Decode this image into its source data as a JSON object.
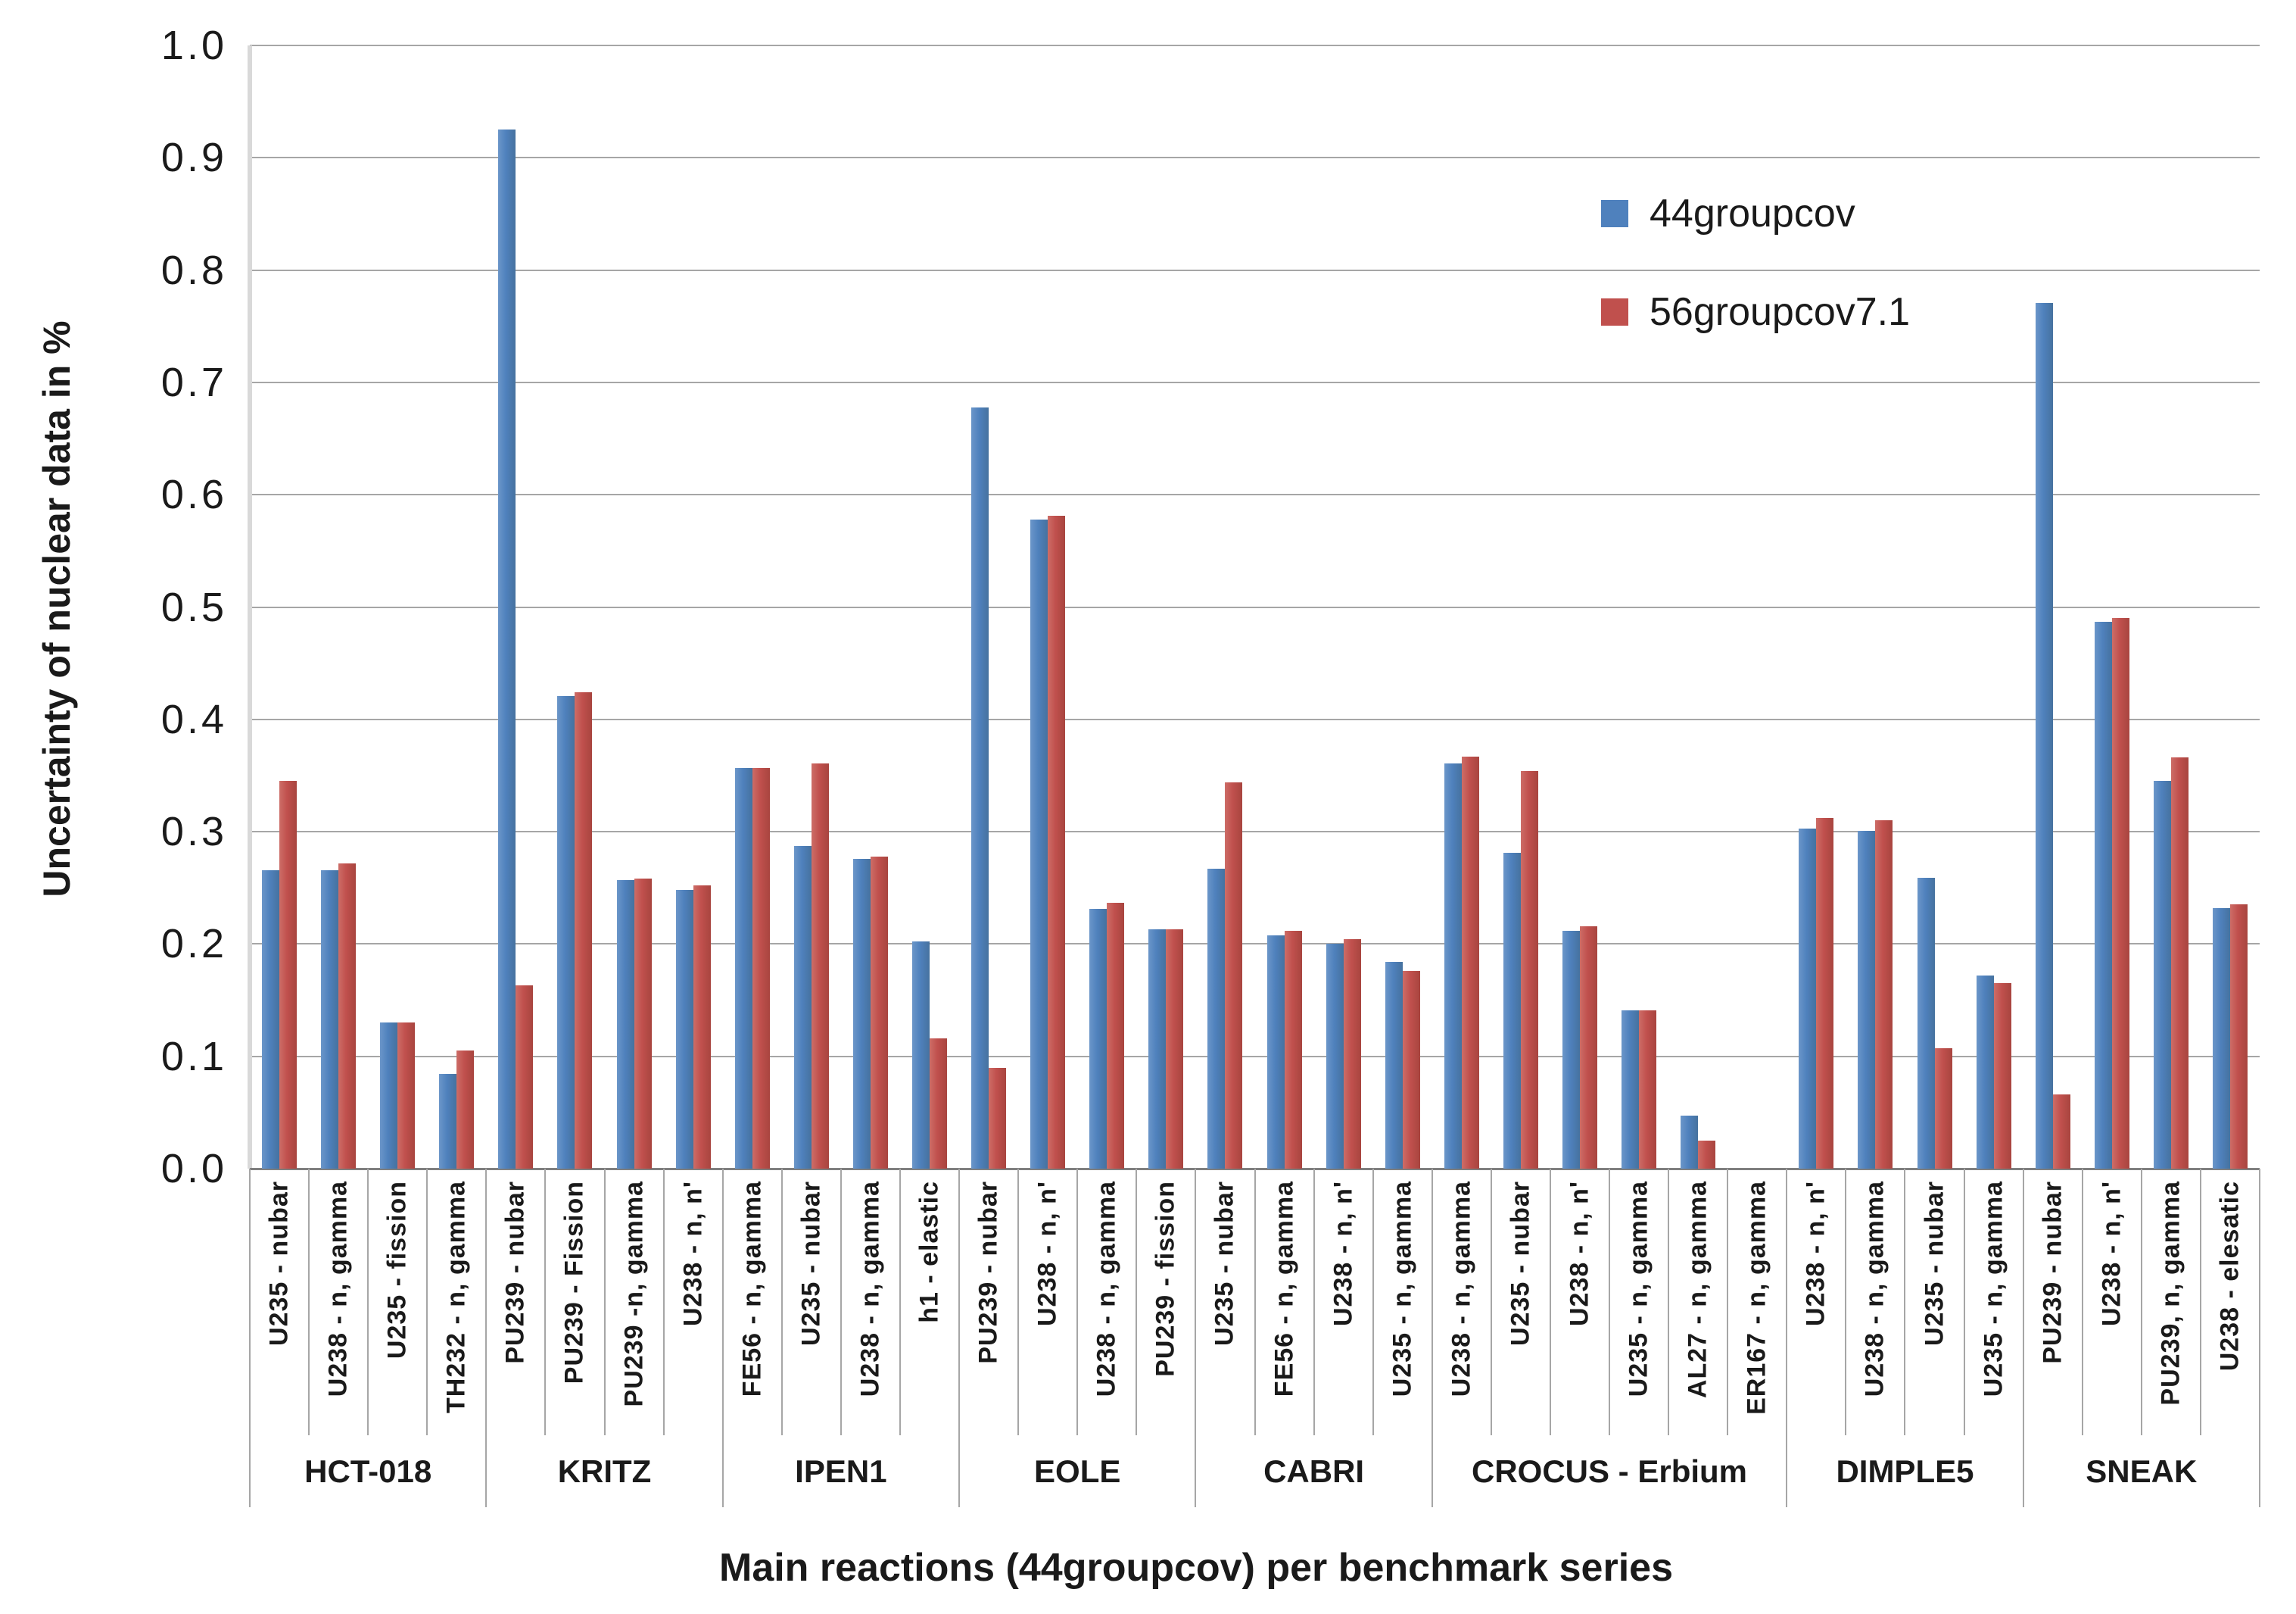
{
  "chart_data": {
    "type": "bar",
    "title": "",
    "xlabel": "Main reactions (44groupcov) per benchmark series",
    "ylabel": "Uncertainty of nuclear data in %",
    "ylim": [
      0.0,
      1.0
    ],
    "ytick_step": 0.1,
    "yticks": [
      "0.0",
      "0.1",
      "0.2",
      "0.3",
      "0.4",
      "0.5",
      "0.6",
      "0.7",
      "0.8",
      "0.9",
      "1.0"
    ],
    "grid": true,
    "legend_position": "upper-right-inside",
    "categories": [
      "U235 - nubar",
      "U238 - n, gamma",
      "U235 - fission",
      "TH232 - n, gamma",
      "PU239 - nubar",
      "PU239 - Fission",
      "PU239 -n, gamma",
      "U238 - n, n'",
      "FE56 - n, gamma",
      "U235 - nubar",
      "U238 - n, gamma",
      "h1 - elastic",
      "PU239 - nubar",
      "U238 - n, n'",
      "U238 - n, gamma",
      "PU239 - fission",
      "U235 - nubar",
      "FE56 - n, gamma",
      "U238 - n, n'",
      "U235 - n, gamma",
      "U238 - n, gamma",
      "U235 - nubar",
      "U238 - n, n'",
      "U235 - n, gamma",
      "AL27 - n, gamma",
      "ER167 - n, gamma",
      "U238 - n, n'",
      "U238 - n, gamma",
      "U235 - nubar",
      "U235 - n, gamma",
      "PU239 - nubar",
      "U238 - n, n'",
      "PU239, n, gamma",
      "U238 - elesatic"
    ],
    "groups": [
      {
        "label": "HCT-018",
        "count": 4
      },
      {
        "label": "KRITZ",
        "count": 4
      },
      {
        "label": "IPEN1",
        "count": 4
      },
      {
        "label": "EOLE",
        "count": 4
      },
      {
        "label": "CABRI",
        "count": 4
      },
      {
        "label": "CROCUS - Erbium",
        "count": 6
      },
      {
        "label": "DIMPLE5",
        "count": 4
      },
      {
        "label": "SNEAK",
        "count": 4
      }
    ],
    "series": [
      {
        "name": "44groupcov",
        "color": "#4F81BD",
        "values": [
          0.266,
          0.266,
          0.13,
          0.084,
          0.925,
          0.421,
          0.257,
          0.248,
          0.357,
          0.287,
          0.276,
          0.202,
          0.678,
          0.578,
          0.231,
          0.213,
          0.267,
          0.208,
          0.2,
          0.184,
          0.361,
          0.281,
          0.212,
          0.141,
          0.047,
          0,
          0.303,
          0.301,
          0.259,
          0.172,
          0.771,
          0.487,
          0.345,
          0.232
        ]
      },
      {
        "name": "56groupcov7.1",
        "color": "#C0504D",
        "values": [
          0.345,
          0.272,
          0.13,
          0.105,
          0.163,
          0.424,
          0.258,
          0.252,
          0.357,
          0.361,
          0.278,
          0.116,
          0.09,
          0.581,
          0.237,
          0.213,
          0.344,
          0.212,
          0.204,
          0.176,
          0.367,
          0.354,
          0.216,
          0.141,
          0.025,
          0,
          0.312,
          0.31,
          0.107,
          0.165,
          0.066,
          0.49,
          0.366,
          0.235
        ]
      }
    ]
  }
}
